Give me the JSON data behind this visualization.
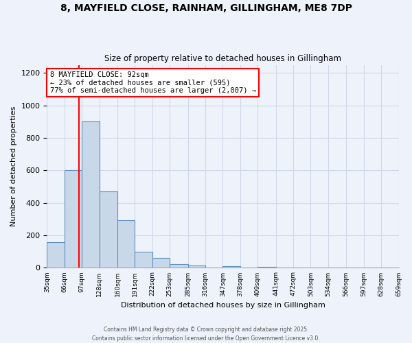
{
  "title_line1": "8, MAYFIELD CLOSE, RAINHAM, GILLINGHAM, ME8 7DP",
  "title_line2": "Size of property relative to detached houses in Gillingham",
  "xlabel": "Distribution of detached houses by size in Gillingham",
  "ylabel": "Number of detached properties",
  "bin_labels": [
    "35sqm",
    "66sqm",
    "97sqm",
    "128sqm",
    "160sqm",
    "191sqm",
    "222sqm",
    "253sqm",
    "285sqm",
    "316sqm",
    "347sqm",
    "378sqm",
    "409sqm",
    "441sqm",
    "472sqm",
    "503sqm",
    "534sqm",
    "566sqm",
    "597sqm",
    "628sqm",
    "659sqm"
  ],
  "bin_edges": [
    35,
    66,
    97,
    128,
    160,
    191,
    222,
    253,
    285,
    316,
    347,
    378,
    409,
    441,
    472,
    503,
    534,
    566,
    597,
    628,
    659
  ],
  "bar_heights": [
    160,
    600,
    900,
    470,
    295,
    100,
    60,
    25,
    15,
    0,
    10,
    0,
    5,
    0,
    0,
    0,
    0,
    0,
    0,
    0
  ],
  "bar_color": "#c8d8e8",
  "bar_edge_color": "#6090c0",
  "vline_x": 92,
  "vline_color": "red",
  "annotation_title": "8 MAYFIELD CLOSE: 92sqm",
  "annotation_line2": "← 23% of detached houses are smaller (595)",
  "annotation_line3": "77% of semi-detached houses are larger (2,007) →",
  "annotation_box_color": "white",
  "annotation_box_edge_color": "red",
  "ylim": [
    0,
    1250
  ],
  "yticks": [
    0,
    200,
    400,
    600,
    800,
    1000,
    1200
  ],
  "background_color": "#eef2fa",
  "grid_color": "#d0d8e8",
  "footer_line1": "Contains HM Land Registry data © Crown copyright and database right 2025.",
  "footer_line2": "Contains public sector information licensed under the Open Government Licence v3.0."
}
